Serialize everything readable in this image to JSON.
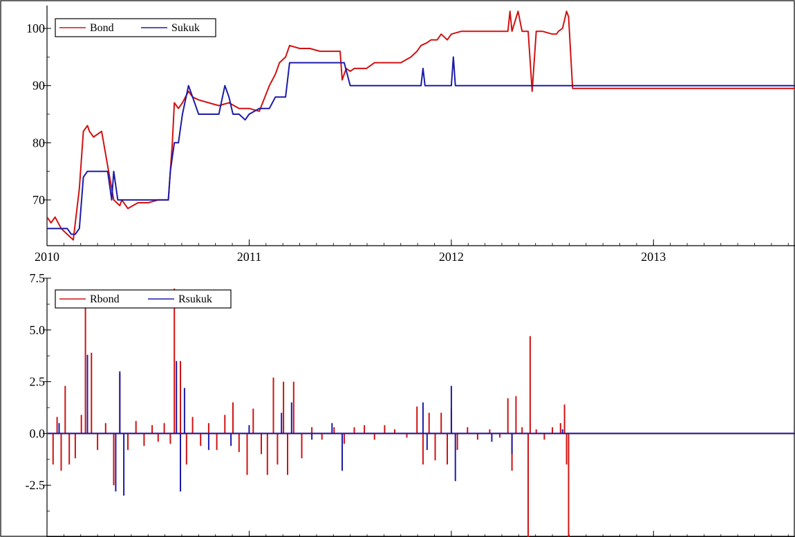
{
  "chart_data": [
    {
      "type": "line",
      "title": "",
      "xlabel": "",
      "ylabel": "",
      "xlim": [
        2010.0,
        2013.7
      ],
      "ylim": [
        62,
        104
      ],
      "xticks": [
        2010,
        2011,
        2012,
        2013
      ],
      "xtick_labels": [
        "2010",
        "2011",
        "2012",
        "2013"
      ],
      "yticks": [
        70,
        80,
        90,
        100
      ],
      "ytick_labels": [
        "70",
        "80",
        "90",
        "100"
      ],
      "legend_position": "top-left",
      "grid": false,
      "series": [
        {
          "name": "Bond",
          "color": "#d11010",
          "x": [
            2010.0,
            2010.02,
            2010.04,
            2010.07,
            2010.1,
            2010.13,
            2010.16,
            2010.18,
            2010.2,
            2010.21,
            2010.23,
            2010.27,
            2010.3,
            2010.32,
            2010.33,
            2010.36,
            2010.37,
            2010.4,
            2010.45,
            2010.5,
            2010.55,
            2010.6,
            2010.62,
            2010.63,
            2010.65,
            2010.67,
            2010.7,
            2010.72,
            2010.75,
            2010.8,
            2010.85,
            2010.9,
            2010.95,
            2011.0,
            2011.05,
            2011.1,
            2011.13,
            2011.15,
            2011.18,
            2011.2,
            2011.25,
            2011.3,
            2011.35,
            2011.4,
            2011.45,
            2011.46,
            2011.48,
            2011.5,
            2011.52,
            2011.55,
            2011.58,
            2011.6,
            2011.62,
            2011.65,
            2011.7,
            2011.75,
            2011.8,
            2011.83,
            2011.85,
            2011.88,
            2011.9,
            2011.93,
            2011.95,
            2011.98,
            2012.0,
            2012.05,
            2012.1,
            2012.15,
            2012.2,
            2012.25,
            2012.28,
            2012.29,
            2012.3,
            2012.33,
            2012.35,
            2012.38,
            2012.4,
            2012.42,
            2012.45,
            2012.5,
            2012.52,
            2012.53,
            2012.55,
            2012.57,
            2012.58,
            2012.6,
            2012.7,
            2012.8,
            2013.0,
            2013.2,
            2013.4,
            2013.6,
            2013.7
          ],
          "values": [
            67,
            66,
            67,
            65,
            64,
            63,
            72,
            82,
            83,
            82,
            81,
            82,
            76,
            72,
            70,
            69,
            70,
            68.5,
            69.5,
            69.5,
            70,
            70,
            80,
            87,
            86,
            87,
            89,
            88,
            87.5,
            87,
            86.5,
            87,
            86,
            86,
            85.5,
            90,
            92,
            94,
            95,
            97,
            96.5,
            96.5,
            96,
            96,
            96,
            91,
            93,
            92.5,
            93,
            93,
            93,
            93.5,
            94,
            94,
            94,
            94,
            95,
            96,
            97,
            97.5,
            98,
            98,
            99,
            98,
            99,
            99.5,
            99.5,
            99.5,
            99.5,
            99.5,
            99.5,
            103,
            99.5,
            103,
            99.5,
            99.5,
            89,
            99.5,
            99.5,
            99,
            99,
            99.5,
            100,
            103,
            102,
            89.5,
            89.5,
            89.5,
            89.5,
            89.5,
            89.5,
            89.5,
            89.5
          ]
        },
        {
          "name": "Sukuk",
          "color": "#1a1aa8",
          "x": [
            2010.0,
            2010.07,
            2010.1,
            2010.12,
            2010.14,
            2010.16,
            2010.18,
            2010.2,
            2010.3,
            2010.32,
            2010.33,
            2010.35,
            2010.37,
            2010.4,
            2010.5,
            2010.6,
            2010.61,
            2010.63,
            2010.65,
            2010.67,
            2010.7,
            2010.72,
            2010.75,
            2010.8,
            2010.85,
            2010.88,
            2010.9,
            2010.92,
            2010.95,
            2010.98,
            2011.0,
            2011.05,
            2011.1,
            2011.13,
            2011.15,
            2011.18,
            2011.2,
            2011.4,
            2011.45,
            2011.47,
            2011.5,
            2011.6,
            2011.8,
            2011.85,
            2011.86,
            2011.87,
            2011.95,
            2012.0,
            2012.01,
            2012.02,
            2012.1,
            2012.3,
            2012.5,
            2012.55,
            2012.58,
            2012.6,
            2012.8,
            2013.0,
            2013.3,
            2013.7
          ],
          "values": [
            65,
            65,
            65,
            64,
            64,
            65,
            74,
            75,
            75,
            70,
            75,
            70,
            70,
            70,
            70,
            70,
            75,
            80,
            80,
            85,
            90,
            88,
            85,
            85,
            85,
            90,
            88,
            85,
            85,
            84,
            85,
            86,
            86,
            88,
            88,
            88,
            94,
            94,
            94,
            94,
            90,
            90,
            90,
            90,
            93,
            90,
            90,
            90,
            95,
            90,
            90,
            90,
            90,
            90,
            90,
            90,
            90,
            90,
            90,
            90
          ]
        }
      ]
    },
    {
      "type": "line",
      "title": "",
      "xlabel": "",
      "ylabel": "",
      "xlim": [
        2010.0,
        2013.7
      ],
      "ylim": [
        -5.0,
        7.5
      ],
      "xticks": [
        2010,
        2011,
        2012,
        2013
      ],
      "xtick_labels": [
        "2010",
        "2011",
        "2012",
        "2013"
      ],
      "yticks": [
        -2.5,
        0.0,
        2.5,
        5.0,
        7.5
      ],
      "ytick_labels": [
        "-2.5",
        "0.0",
        "2.5",
        "5.0",
        "7.5"
      ],
      "legend_position": "top-left",
      "grid": false,
      "series": [
        {
          "name": "Rbond",
          "color": "#d11010",
          "x": [
            2010.03,
            2010.05,
            2010.07,
            2010.09,
            2010.11,
            2010.14,
            2010.17,
            2010.19,
            2010.22,
            2010.25,
            2010.29,
            2010.33,
            2010.36,
            2010.4,
            2010.44,
            2010.48,
            2010.52,
            2010.55,
            2010.58,
            2010.61,
            2010.63,
            2010.66,
            2010.69,
            2010.72,
            2010.76,
            2010.8,
            2010.84,
            2010.88,
            2010.92,
            2010.95,
            2010.99,
            2011.02,
            2011.06,
            2011.09,
            2011.12,
            2011.14,
            2011.17,
            2011.19,
            2011.22,
            2011.26,
            2011.31,
            2011.36,
            2011.42,
            2011.47,
            2011.52,
            2011.57,
            2011.62,
            2011.67,
            2011.72,
            2011.78,
            2011.83,
            2011.86,
            2011.89,
            2011.92,
            2011.95,
            2011.98,
            2012.0,
            2012.03,
            2012.08,
            2012.13,
            2012.19,
            2012.24,
            2012.28,
            2012.3,
            2012.32,
            2012.35,
            2012.38,
            2012.39,
            2012.42,
            2012.46,
            2012.5,
            2012.54,
            2012.56,
            2012.57,
            2012.58
          ],
          "values": [
            -1.5,
            0.8,
            -1.8,
            2.3,
            -1.5,
            -1.2,
            0.9,
            6.8,
            3.9,
            -0.8,
            0.5,
            -2.5,
            2.9,
            -0.8,
            0.6,
            -0.6,
            0.4,
            -0.4,
            0.5,
            -0.5,
            7.0,
            3.5,
            -1.5,
            0.8,
            -0.6,
            0.5,
            -0.8,
            0.9,
            1.5,
            -0.9,
            -2.0,
            1.2,
            -1.0,
            -2.0,
            2.7,
            -1.5,
            2.5,
            -2.0,
            2.5,
            -1.2,
            0.3,
            -0.3,
            0.3,
            -0.5,
            0.3,
            0.4,
            -0.3,
            0.4,
            0.2,
            -0.2,
            1.3,
            -1.5,
            1.0,
            -1.3,
            1.0,
            -1.5,
            1.2,
            -0.8,
            0.3,
            -0.3,
            0.2,
            -0.2,
            1.7,
            -1.8,
            1.8,
            0.3,
            -5.0,
            4.7,
            0.2,
            -0.3,
            0.3,
            0.5,
            1.4,
            -1.5,
            -5.0
          ]
        },
        {
          "name": "Rsukuk",
          "color": "#1a1aa8",
          "x": [
            2010.06,
            2010.2,
            2010.34,
            2010.36,
            2010.38,
            2010.64,
            2010.66,
            2010.68,
            2010.8,
            2010.91,
            2011.0,
            2011.16,
            2011.21,
            2011.31,
            2011.41,
            2011.46,
            2011.86,
            2011.88,
            2012.0,
            2012.02,
            2012.2,
            2012.3,
            2012.55
          ],
          "values": [
            0.5,
            3.8,
            -2.8,
            3.0,
            -3.0,
            3.5,
            -2.8,
            2.2,
            -0.8,
            -0.6,
            0.4,
            1.0,
            1.5,
            -0.3,
            0.5,
            -1.8,
            1.5,
            -0.8,
            2.3,
            -2.3,
            -0.4,
            -1.0,
            0.2
          ]
        }
      ]
    }
  ]
}
